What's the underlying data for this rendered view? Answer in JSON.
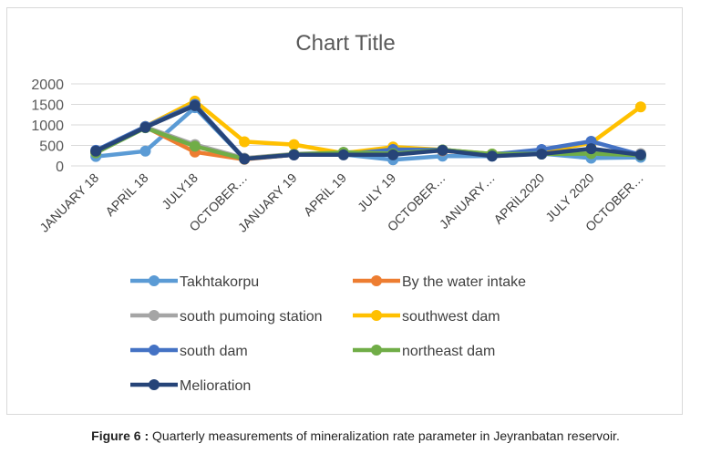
{
  "caption": {
    "label": "Figure 6 :",
    "text": " Quarterly measurements of mineralization rate parameter in Jeyranbatan reservoir."
  },
  "chart_data": {
    "type": "line",
    "title": "Chart Title",
    "xlabel": "",
    "ylabel": "",
    "ylim": [
      0,
      2000
    ],
    "yticks": [
      0,
      500,
      1000,
      1500,
      2000
    ],
    "grid": true,
    "legend_position": "bottom",
    "categories": [
      "JANUARY 18",
      "APRİL 18",
      "JULY18",
      "OCTOBER…",
      "JANUARY 19",
      "APRİL 19",
      "JULY 19",
      "OCTOBER…",
      "JANUARY…",
      "APRİL2020",
      "JULY 2020",
      "OCTOBER…"
    ],
    "series": [
      {
        "name": "Takhtakorpu",
        "color": "#5b9bd5",
        "values": [
          230,
          360,
          1420,
          170,
          270,
          280,
          150,
          240,
          240,
          300,
          190,
          210
        ]
      },
      {
        "name": "By the water intake",
        "color": "#ed7d31",
        "values": [
          330,
          950,
          340,
          160,
          270,
          300,
          320,
          370,
          270,
          330,
          380,
          270
        ]
      },
      {
        "name": "south pumoing station",
        "color": "#a5a5a5",
        "values": [
          320,
          950,
          520,
          190,
          290,
          330,
          360,
          380,
          290,
          340,
          390,
          300
        ]
      },
      {
        "name": "southwest dam",
        "color": "#ffc000",
        "values": [
          350,
          960,
          1580,
          590,
          520,
          310,
          460,
          390,
          290,
          350,
          560,
          1440
        ]
      },
      {
        "name": "south dam",
        "color": "#4472c4",
        "values": [
          380,
          960,
          1500,
          170,
          270,
          280,
          400,
          390,
          280,
          400,
          600,
          270
        ]
      },
      {
        "name": "northeast dam",
        "color": "#70ad47",
        "values": [
          320,
          930,
          480,
          170,
          280,
          330,
          300,
          390,
          290,
          290,
          300,
          260
        ]
      },
      {
        "name": "Melioration",
        "color": "#264478",
        "values": [
          360,
          940,
          1470,
          170,
          270,
          270,
          270,
          380,
          240,
          290,
          420,
          270
        ]
      }
    ]
  }
}
